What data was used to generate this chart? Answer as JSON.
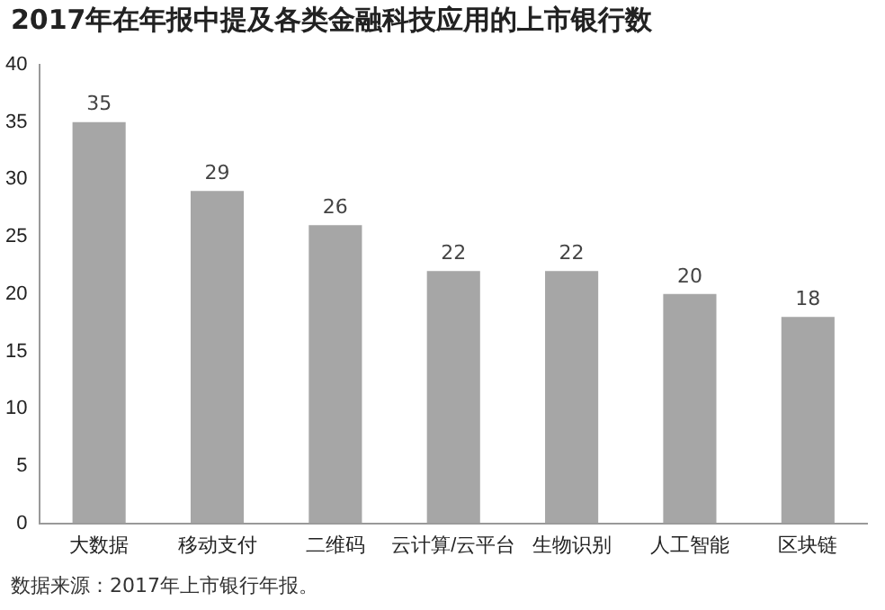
{
  "chart_data": {
    "type": "bar",
    "title": "2017年在年报中提及各类金融科技应用的上市银行数",
    "categories": [
      "大数据",
      "移动支付",
      "二维码",
      "云计算/云平台",
      "生物识别",
      "人工智能",
      "区块链"
    ],
    "values": [
      35,
      29,
      26,
      22,
      22,
      20,
      18
    ],
    "color": "#a6a6a6",
    "ylim": [
      0,
      40
    ],
    "yticks": [
      0,
      5,
      10,
      15,
      20,
      25,
      30,
      35,
      40
    ],
    "grid": false,
    "legend": false,
    "data_labels": true,
    "annotations": [
      "数据来源：2017年上市银行年报。"
    ]
  }
}
